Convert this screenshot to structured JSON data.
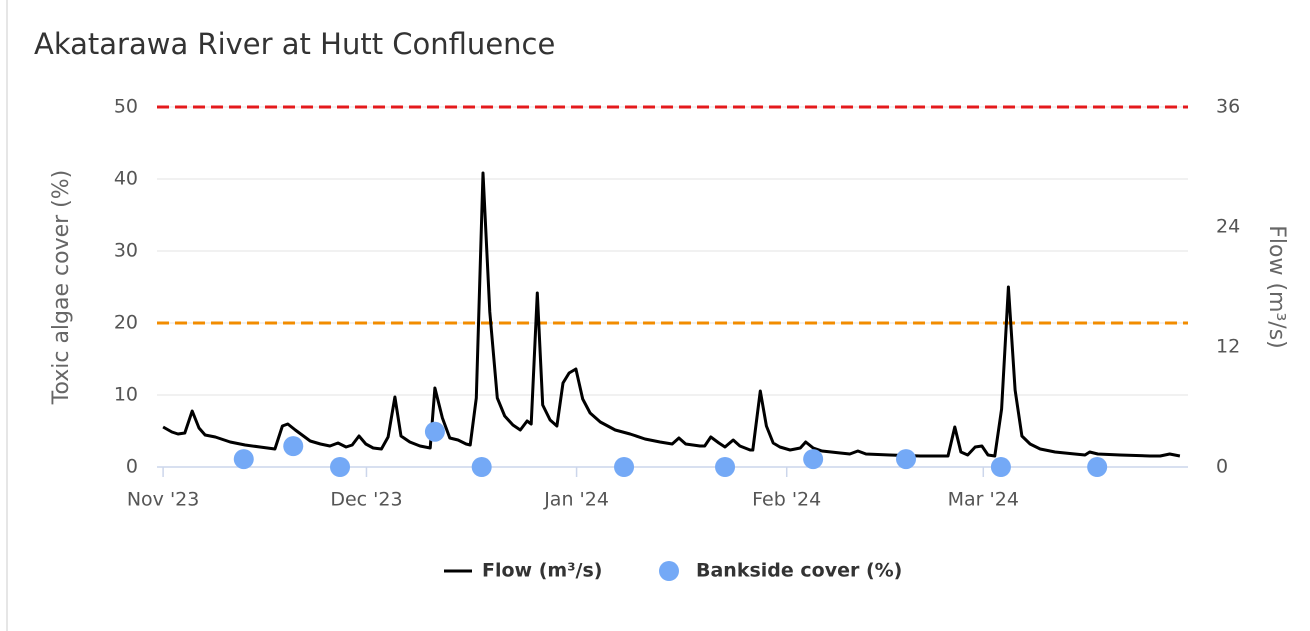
{
  "chart_data": {
    "type": "line",
    "title": "Akatarawa River at Hutt Confluence",
    "ylabel": "Toxic algae cover (%)",
    "y2label": "Flow (m³/s)",
    "xlim": [
      -0.9,
      151.2
    ],
    "xticks": [
      {
        "value": 0,
        "label": "Nov '23"
      },
      {
        "value": 30,
        "label": "Dec '23"
      },
      {
        "value": 61,
        "label": "Jan '24"
      },
      {
        "value": 92,
        "label": "Feb '24"
      },
      {
        "value": 121,
        "label": "Mar '24"
      }
    ],
    "ylim": [
      0,
      50
    ],
    "yticks": [
      0,
      10,
      20,
      30,
      40,
      50
    ],
    "y2lim": [
      0,
      36
    ],
    "y2ticks": [
      0,
      12,
      24,
      36
    ],
    "grid": true,
    "thresholds": [
      {
        "value": 20,
        "color": "#f28c00"
      },
      {
        "value": 50,
        "color": "#e41a1c"
      }
    ],
    "series": [
      {
        "name": "Flow (m³/s)",
        "type": "line",
        "axis": "y2",
        "color": "#000000",
        "x": [
          0,
          1.3,
          2.2,
          3.2,
          4.3,
          5.3,
          6.2,
          7.7,
          9.9,
          12.1,
          14.3,
          16.5,
          17.6,
          18.4,
          19.5,
          20.5,
          21.7,
          23.2,
          24.6,
          25.8,
          27,
          27.9,
          28.9,
          29.9,
          31,
          32.2,
          33.2,
          34.2,
          35.1,
          36.4,
          37.9,
          39.4,
          40.1,
          41.2,
          42.3,
          43.5,
          44.7,
          45.3,
          46.2,
          47.2,
          48.2,
          49.3,
          50.4,
          51.6,
          52.7,
          53.7,
          54.3,
          55.2,
          56,
          57.1,
          58.1,
          59,
          59.9,
          60.9,
          61.9,
          63,
          64.5,
          66.7,
          68.9,
          71.1,
          73.3,
          75.1,
          76.1,
          77.1,
          79.2,
          79.9,
          80.8,
          82,
          82.9,
          84.1,
          85.1,
          86.6,
          87,
          88.1,
          89,
          90,
          91,
          92.5,
          94,
          94.8,
          95.9,
          97.2,
          99.9,
          101.3,
          102.5,
          103.7,
          107.2,
          111.7,
          115.8,
          116.8,
          117.7,
          118.7,
          119.8,
          120.8,
          121.7,
          122.7,
          123.7,
          124.7,
          125.7,
          126.7,
          127.9,
          129.4,
          131.6,
          134.5,
          136,
          136.7,
          137.9,
          141.2,
          145.6,
          147.1,
          148.5,
          150
        ],
        "values": [
          4,
          3.5,
          3.3,
          3.4,
          5.6,
          3.9,
          3.2,
          3,
          2.5,
          2.2,
          2,
          1.8,
          4.1,
          4.3,
          3.7,
          3.2,
          2.6,
          2.3,
          2.1,
          2.4,
          2,
          2.2,
          3.1,
          2.3,
          1.9,
          1.8,
          3,
          7,
          3.1,
          2.5,
          2.1,
          1.9,
          7.9,
          4.9,
          2.9,
          2.7,
          2.3,
          2.2,
          6.9,
          29.4,
          15.5,
          6.9,
          5.1,
          4.2,
          3.7,
          4.6,
          4.3,
          17.4,
          6.2,
          4.7,
          4.1,
          8.4,
          9.4,
          9.8,
          6.8,
          5.4,
          4.5,
          3.7,
          3.3,
          2.8,
          2.5,
          2.3,
          2.9,
          2.3,
          2.1,
          2.1,
          3,
          2.4,
          2,
          2.7,
          2.1,
          1.7,
          1.7,
          7.6,
          4.1,
          2.4,
          2,
          1.7,
          1.9,
          2.5,
          1.9,
          1.6,
          1.4,
          1.3,
          1.6,
          1.3,
          1.2,
          1.1,
          1.1,
          4,
          1.5,
          1.2,
          2,
          2.1,
          1.2,
          1.1,
          5.8,
          18,
          7.7,
          3.1,
          2.3,
          1.8,
          1.5,
          1.3,
          1.2,
          1.5,
          1.3,
          1.2,
          1.1,
          1.1,
          1.3,
          1.1
        ]
      },
      {
        "name": "Bankside cover (%)",
        "type": "scatter",
        "color": "#74a9f6",
        "x": [
          11.9,
          19.2,
          26.1,
          40.1,
          47,
          68,
          82.9,
          95.9,
          109.6,
          123.6,
          137.8
        ],
        "values": [
          1.1,
          2.9,
          0,
          4.9,
          0,
          0,
          0,
          1.1,
          1.1,
          0,
          0
        ]
      }
    ]
  }
}
